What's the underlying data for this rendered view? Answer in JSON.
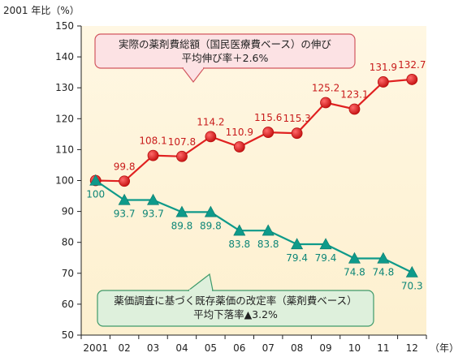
{
  "chart_data": {
    "type": "line",
    "ylabel": "2001 年比（%）",
    "xunit": "（年）",
    "categories": [
      "2001",
      "02",
      "03",
      "04",
      "05",
      "06",
      "07",
      "08",
      "09",
      "10",
      "11",
      "12"
    ],
    "ylim": [
      50,
      150
    ],
    "yticks": [
      50,
      60,
      70,
      80,
      90,
      100,
      110,
      120,
      130,
      140,
      150
    ],
    "grid": false,
    "series": [
      {
        "values": [
          100,
          99.8,
          108.1,
          107.8,
          114.2,
          110.9,
          115.6,
          115.3,
          125.2,
          123.1,
          131.9,
          132.7
        ],
        "labels": [
          "",
          "99.8",
          "108.1",
          "107.8",
          "114.2",
          "110.9",
          "115.6",
          "115.3",
          "125.2",
          "123.1",
          "131.9",
          "132.7"
        ],
        "color": "#e02020",
        "marker": "circle"
      },
      {
        "values": [
          100,
          93.7,
          93.7,
          89.8,
          89.8,
          83.8,
          83.8,
          79.4,
          79.4,
          74.8,
          74.8,
          70.3
        ],
        "labels": [
          "100",
          "93.7",
          "93.7",
          "89.8",
          "89.8",
          "83.8",
          "83.8",
          "79.4",
          "79.4",
          "74.8",
          "74.8",
          "70.3"
        ],
        "color": "#0e9a8a",
        "marker": "triangle"
      }
    ],
    "annotations": [
      {
        "lines": [
          "実際の薬剤費総額（国民医療費ベース）の伸び",
          "平均伸び率＋2.6%"
        ],
        "fill": "#fce2e4",
        "stroke": "#d2575f"
      },
      {
        "lines": [
          "薬価調査に基づく既存薬価の改定率（薬剤費ベース）",
          "平均下落率▲3.2%"
        ],
        "fill": "#def0dc",
        "stroke": "#3f9a6a"
      }
    ]
  }
}
